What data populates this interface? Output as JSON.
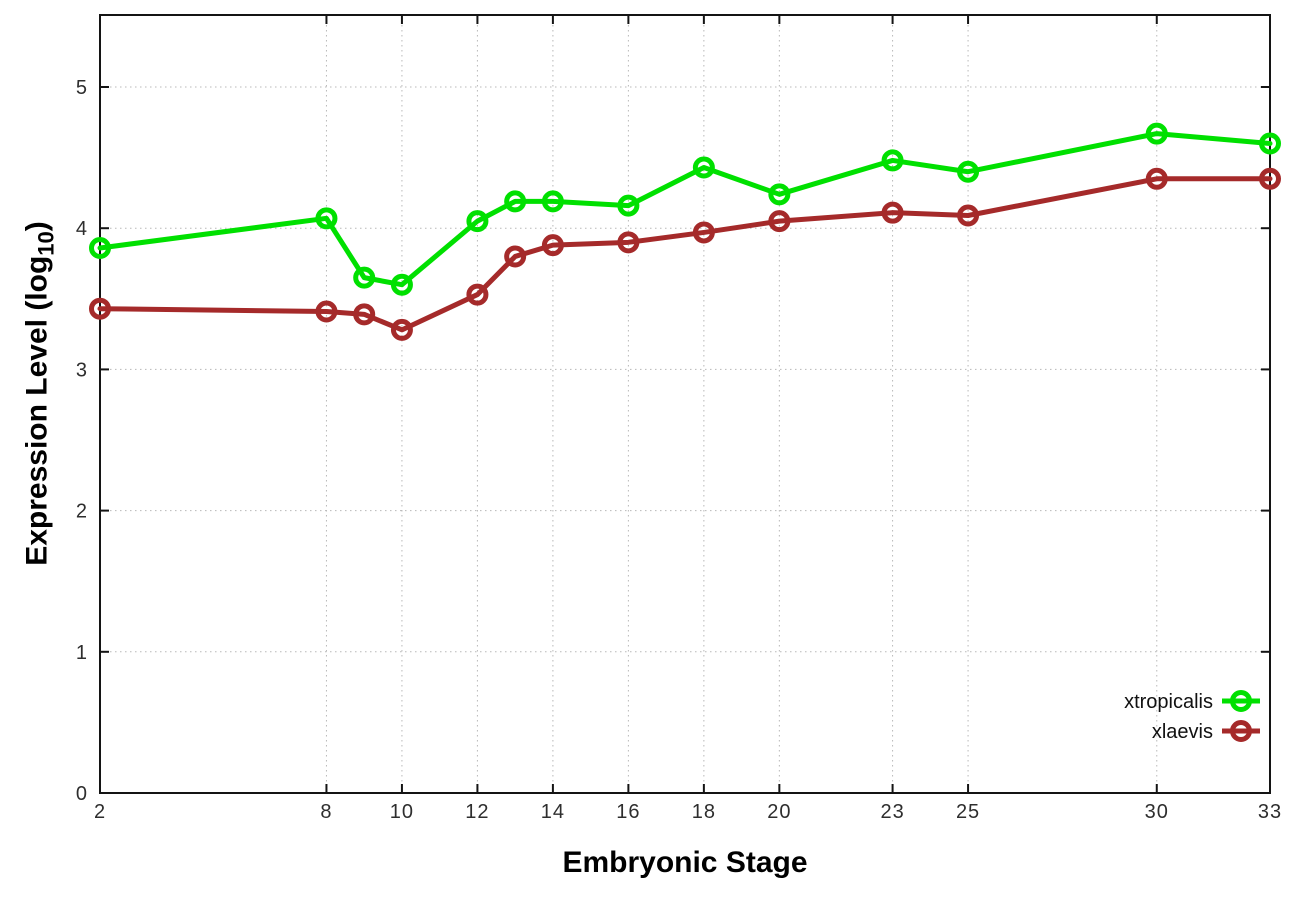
{
  "chart_data": {
    "type": "line",
    "title": "",
    "xlabel": "Embryonic Stage",
    "ylabel": "Expression Level (log10)",
    "ylabel_parts": {
      "prefix": "Expression Level (log",
      "sub": "10",
      "suffix": ")"
    },
    "x": [
      2,
      8,
      9,
      10,
      12,
      13,
      14,
      16,
      18,
      20,
      23,
      25,
      30,
      33
    ],
    "x_ticks": [
      2,
      8,
      10,
      12,
      14,
      16,
      18,
      20,
      23,
      25,
      30,
      33
    ],
    "y_ticks": [
      0,
      1,
      2,
      3,
      4,
      5
    ],
    "xlim": [
      2,
      33
    ],
    "ylim": [
      0,
      5.51
    ],
    "grid": true,
    "legend_position": "bottom-right-inside",
    "series": [
      {
        "name": "xtropicalis",
        "color": "#00e000",
        "marker": "open-circle",
        "values": [
          3.86,
          4.07,
          3.65,
          3.6,
          4.05,
          4.19,
          4.19,
          4.16,
          4.43,
          4.24,
          4.48,
          4.4,
          4.67,
          4.6
        ]
      },
      {
        "name": "xlaevis",
        "color": "#a52a2a",
        "marker": "open-circle",
        "values": [
          3.43,
          3.41,
          3.39,
          3.28,
          3.53,
          3.8,
          3.88,
          3.9,
          3.97,
          4.05,
          4.11,
          4.09,
          4.35,
          4.35
        ]
      }
    ]
  }
}
